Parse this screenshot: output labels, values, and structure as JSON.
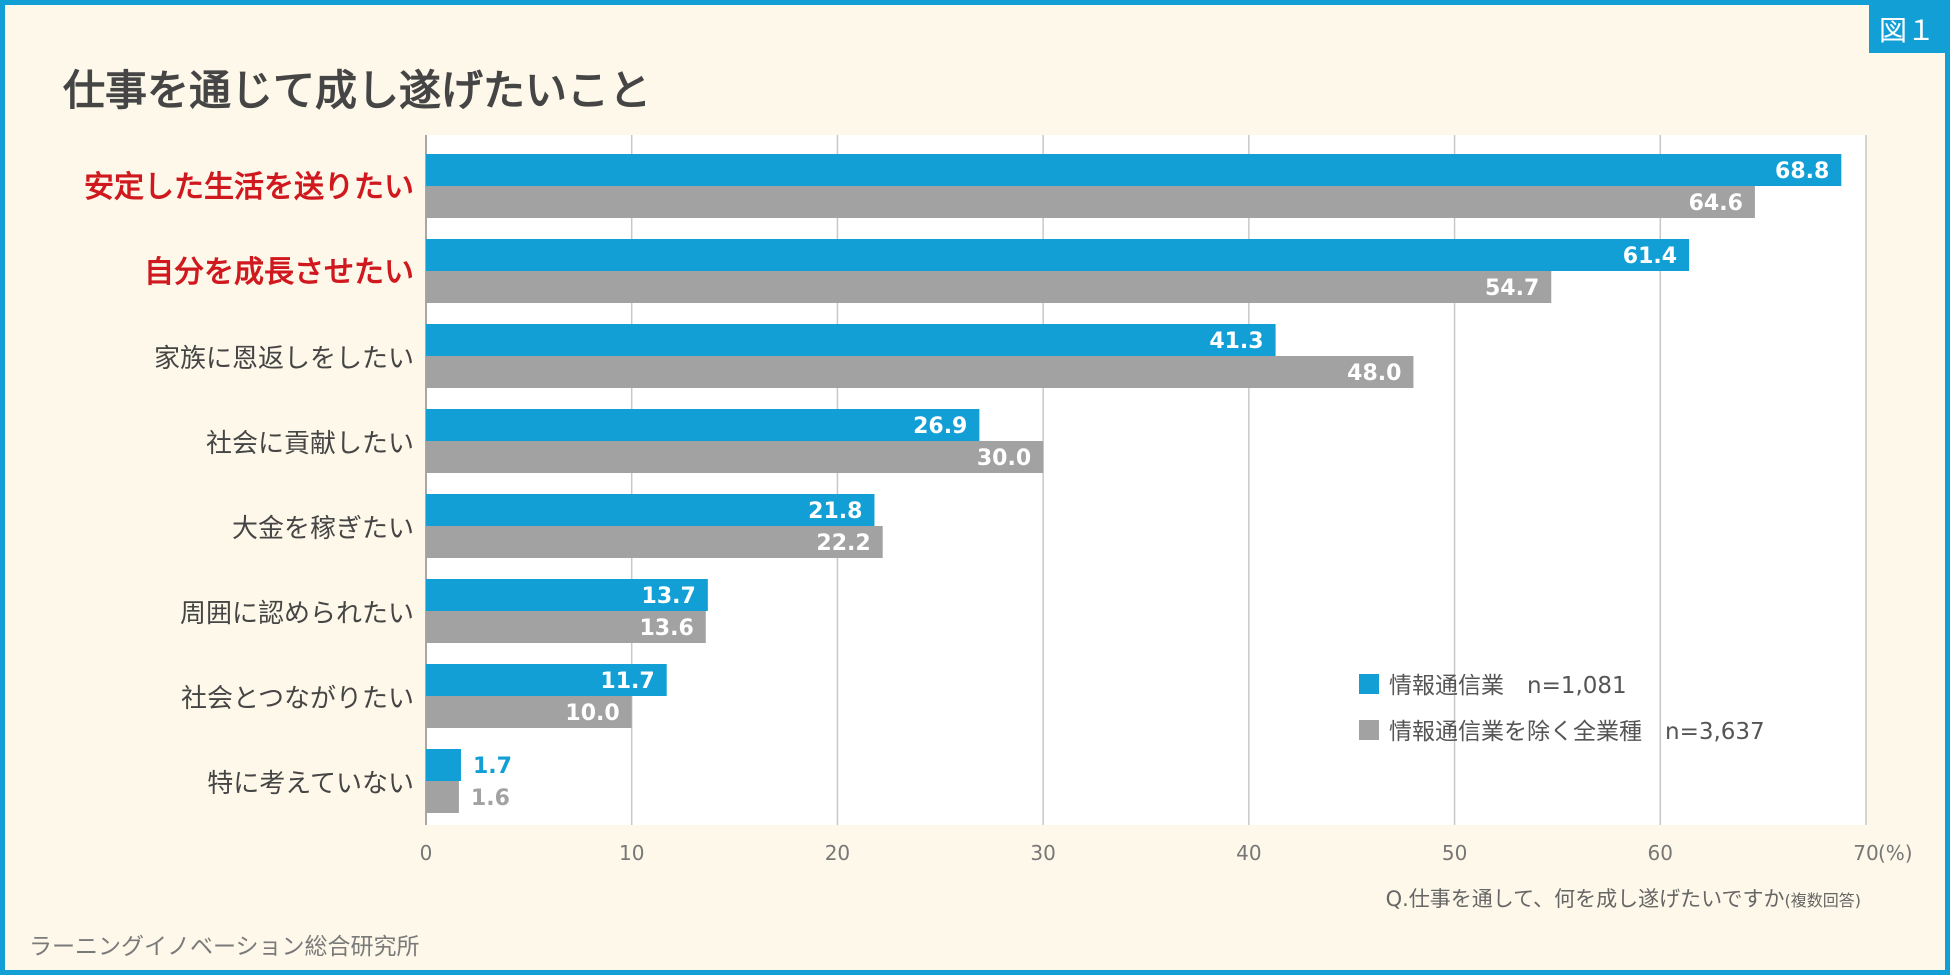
{
  "figure_tag": "図１",
  "title": "仕事を通じて成し遂げたいこと",
  "source": "ラーニングイノベーション総合研究所",
  "question": {
    "main": "Q.仕事を通して、何を成し遂げたいですか",
    "note": "(複数回答)"
  },
  "colors": {
    "series1": "#129fd6",
    "series2": "#a2a2a2",
    "highlight": "#d0191f",
    "label": "#454545",
    "grid": "#c8c8c8",
    "frame": "#129fd6"
  },
  "chart_data": {
    "type": "bar",
    "orientation": "horizontal",
    "title": "仕事を通じて成し遂げたいこと",
    "categories": [
      "安定した生活を送りたい",
      "自分を成長させたい",
      "家族に恩返しをしたい",
      "社会に貢献したい",
      "大金を稼ぎたい",
      "周囲に認められたい",
      "社会とつながりたい",
      "特に考えていない"
    ],
    "highlighted": [
      true,
      true,
      false,
      false,
      false,
      false,
      false,
      false
    ],
    "series": [
      {
        "name": "情報通信業",
        "n": "n=1,081",
        "values": [
          68.8,
          61.4,
          41.3,
          26.9,
          21.8,
          13.7,
          11.7,
          1.7
        ],
        "labels": [
          "68.8",
          "61.4",
          "41.3",
          "26.9",
          "21.8",
          "13.7",
          "11.7",
          "1.7"
        ]
      },
      {
        "name": "情報通信業を除く全業種",
        "n": "n=3,637",
        "values": [
          64.6,
          54.7,
          48.0,
          30.0,
          22.2,
          13.6,
          10.0,
          1.6
        ],
        "labels": [
          "64.6",
          "54.7",
          "48.0",
          "30.0",
          "22.2",
          "13.6",
          "10.0",
          "1.6"
        ]
      }
    ],
    "xlim": [
      0,
      70
    ],
    "xticks": [
      "0",
      "10",
      "20",
      "30",
      "40",
      "50",
      "60",
      "70"
    ],
    "unit": "(%)",
    "grid": true,
    "legend_position": "bottom-right"
  }
}
